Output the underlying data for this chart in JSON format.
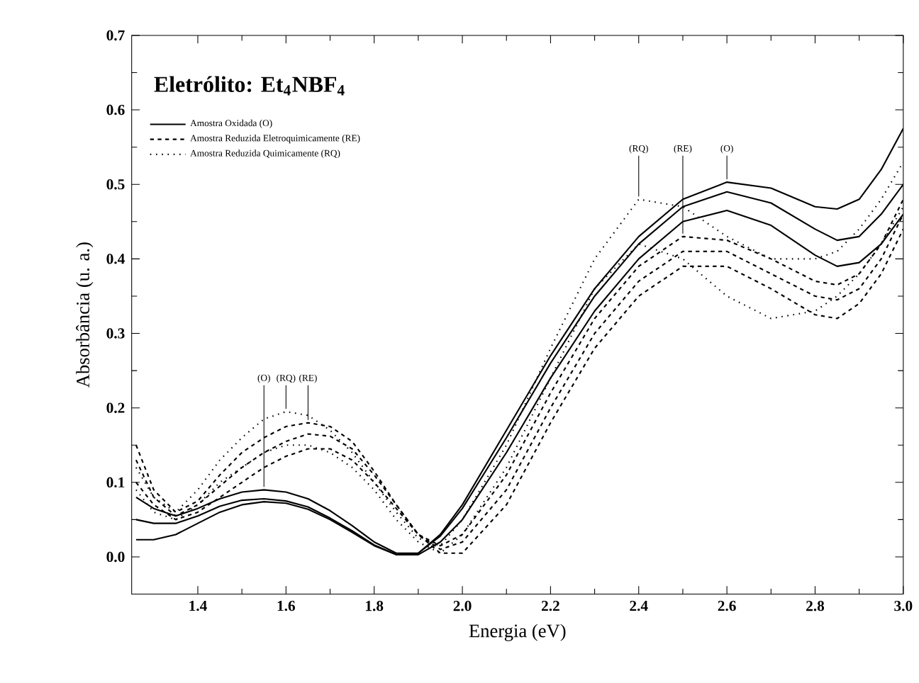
{
  "chart_data": {
    "type": "line",
    "title": "**Eletrólito: Et$_{4}$NBF$_{4}$**",
    "xlabel": "Energia (eV)",
    "ylabel": "Absorbância (u. a.)",
    "x": [
      1.26,
      1.3,
      1.35,
      1.4,
      1.45,
      1.5,
      1.55,
      1.6,
      1.65,
      1.7,
      1.75,
      1.8,
      1.85,
      1.9,
      1.95,
      2.0,
      2.1,
      2.2,
      2.3,
      2.4,
      2.5,
      2.6,
      2.7,
      2.8,
      2.85,
      2.9,
      2.95,
      3.0
    ],
    "series": [
      {
        "name": "Amostra Oxidada (O)",
        "color": "#000000",
        "line_style": "solid",
        "values": [
          0.08,
          0.065,
          0.055,
          0.065,
          0.078,
          0.087,
          0.09,
          0.087,
          0.078,
          0.062,
          0.042,
          0.02,
          0.005,
          0.005,
          0.03,
          0.07,
          0.17,
          0.27,
          0.36,
          0.43,
          0.48,
          0.503,
          0.495,
          0.47,
          0.467,
          0.48,
          0.52,
          0.575
        ]
      },
      {
        "color": "#000000",
        "line_style": "solid",
        "values": [
          0.05,
          0.045,
          0.045,
          0.055,
          0.068,
          0.076,
          0.078,
          0.075,
          0.067,
          0.052,
          0.035,
          0.016,
          0.003,
          0.005,
          0.028,
          0.065,
          0.16,
          0.26,
          0.35,
          0.42,
          0.47,
          0.49,
          0.475,
          0.44,
          0.425,
          0.43,
          0.46,
          0.5
        ]
      },
      {
        "color": "#000000",
        "line_style": "solid",
        "values": [
          0.023,
          0.023,
          0.03,
          0.045,
          0.06,
          0.07,
          0.074,
          0.072,
          0.064,
          0.05,
          0.033,
          0.015,
          0.003,
          0.003,
          0.02,
          0.05,
          0.14,
          0.24,
          0.33,
          0.4,
          0.45,
          0.465,
          0.445,
          0.405,
          0.39,
          0.395,
          0.42,
          0.46
        ]
      },
      {
        "name": "Amostra Reduzida Eletroquimicamente (RE)",
        "color": "#000000",
        "line_style": "dashed",
        "values": [
          0.15,
          0.09,
          0.06,
          0.075,
          0.11,
          0.14,
          0.16,
          0.175,
          0.18,
          0.175,
          0.155,
          0.115,
          0.07,
          0.03,
          0.015,
          0.03,
          0.11,
          0.22,
          0.32,
          0.39,
          0.43,
          0.425,
          0.4,
          0.37,
          0.365,
          0.38,
          0.42,
          0.48
        ]
      },
      {
        "color": "#000000",
        "line_style": "dashed",
        "values": [
          0.13,
          0.08,
          0.055,
          0.07,
          0.095,
          0.12,
          0.14,
          0.155,
          0.165,
          0.162,
          0.145,
          0.11,
          0.07,
          0.03,
          0.01,
          0.02,
          0.09,
          0.2,
          0.3,
          0.37,
          0.41,
          0.41,
          0.38,
          0.35,
          0.345,
          0.36,
          0.4,
          0.46
        ]
      },
      {
        "color": "#000000",
        "line_style": "dashed",
        "values": [
          0.1,
          0.07,
          0.05,
          0.06,
          0.08,
          0.1,
          0.12,
          0.135,
          0.145,
          0.145,
          0.13,
          0.1,
          0.065,
          0.03,
          0.005,
          0.005,
          0.07,
          0.18,
          0.28,
          0.35,
          0.39,
          0.39,
          0.36,
          0.325,
          0.32,
          0.34,
          0.38,
          0.44
        ]
      },
      {
        "name": "Amostra Reduzida Quimicamente (RQ)",
        "color": "#000000",
        "line_style": "dotted",
        "values": [
          0.12,
          0.08,
          0.06,
          0.09,
          0.13,
          0.16,
          0.185,
          0.195,
          0.19,
          0.17,
          0.14,
          0.1,
          0.06,
          0.025,
          0.015,
          0.05,
          0.15,
          0.28,
          0.4,
          0.48,
          0.47,
          0.43,
          0.4,
          0.4,
          0.41,
          0.44,
          0.48,
          0.53
        ]
      },
      {
        "color": "#000000",
        "line_style": "dotted",
        "values": [
          0.09,
          0.06,
          0.05,
          0.07,
          0.1,
          0.12,
          0.14,
          0.15,
          0.15,
          0.14,
          0.12,
          0.09,
          0.05,
          0.02,
          0.005,
          0.03,
          0.12,
          0.24,
          0.36,
          0.42,
          0.4,
          0.35,
          0.32,
          0.33,
          0.35,
          0.38,
          0.42,
          0.47
        ]
      }
    ],
    "annotations": [
      {
        "text": "(O)",
        "x": 1.55,
        "y": 0.09
      },
      {
        "text": "(RQ)",
        "x": 1.6,
        "y": 0.195
      },
      {
        "text": "(RE)",
        "x": 1.65,
        "y": 0.18
      },
      {
        "text": "(RQ)",
        "x": 2.4,
        "y": 0.48
      },
      {
        "text": "(RE)",
        "x": 2.5,
        "y": 0.43
      },
      {
        "text": "(O)",
        "x": 2.6,
        "y": 0.503
      }
    ],
    "xlim": [
      1.25,
      3.0
    ],
    "ylim": [
      -0.05,
      0.7
    ],
    "xticks": [
      1.4,
      1.6,
      1.8,
      {
        "value": 2,
        "label": "2.0"
      },
      2.2,
      2.4,
      2.6,
      2.8,
      {
        "value": 3,
        "label": "3.0"
      }
    ],
    "yticks": [
      {
        "value": 0,
        "label": "0.0"
      },
      0.1,
      0.2,
      0.3,
      0.4,
      0.5,
      0.6,
      0.7
    ],
    "grid": false,
    "legend": "top left"
  }
}
